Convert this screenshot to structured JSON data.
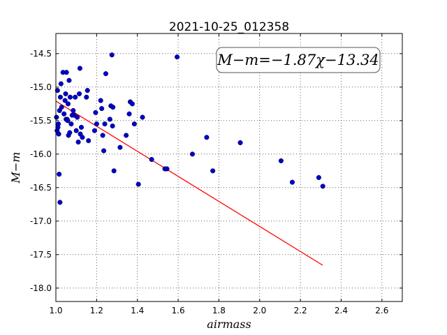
{
  "chart_data": {
    "type": "scatter",
    "title": "2021-10-25_012358",
    "xlabel": "airmass",
    "ylabel": "M−m",
    "xlim": [
      1.0,
      2.7
    ],
    "ylim": [
      -18.2,
      -14.2
    ],
    "xticks": [
      "1.0",
      "1.2",
      "1.4",
      "1.6",
      "1.8",
      "2.0",
      "2.2",
      "2.4",
      "2.6"
    ],
    "yticks": [
      "-14.5",
      "-15.0",
      "-15.5",
      "-16.0",
      "-16.5",
      "-17.0",
      "-17.5",
      "-18.0"
    ],
    "grid": true,
    "annotation": "M−m=−1.87χ−13.34",
    "point_color": "#0000cc",
    "fit_color": "#ff0000",
    "points": {
      "x": [
        1.003,
        1.006,
        1.008,
        1.01,
        1.012,
        1.014,
        1.016,
        1.018,
        1.02,
        1.022,
        1.025,
        1.028,
        1.035,
        1.04,
        1.045,
        1.048,
        1.05,
        1.052,
        1.055,
        1.058,
        1.06,
        1.062,
        1.065,
        1.068,
        1.07,
        1.075,
        1.08,
        1.085,
        1.09,
        1.095,
        1.1,
        1.105,
        1.11,
        1.115,
        1.118,
        1.12,
        1.125,
        1.13,
        1.15,
        1.155,
        1.16,
        1.19,
        1.195,
        1.2,
        1.22,
        1.225,
        1.23,
        1.235,
        1.24,
        1.245,
        1.265,
        1.27,
        1.275,
        1.278,
        1.28,
        1.285,
        1.315,
        1.345,
        1.36,
        1.365,
        1.375,
        1.385,
        1.405,
        1.425,
        1.47,
        1.535,
        1.545,
        1.595,
        1.67,
        1.74,
        1.77,
        1.905,
        2.105,
        2.16,
        2.29,
        2.31
      ],
      "y": [
        -15.45,
        -15.65,
        -15.05,
        -15.6,
        -15.55,
        -15.7,
        -16.3,
        -15.35,
        -16.72,
        -15.15,
        -14.95,
        -15.3,
        -14.78,
        -15.4,
        -15.2,
        -15.1,
        -15.48,
        -14.78,
        -15.48,
        -15.5,
        -15.25,
        -15.72,
        -14.9,
        -15.68,
        -15.15,
        -15.55,
        -15.42,
        -15.35,
        -15.42,
        -15.15,
        -15.65,
        -15.45,
        -15.82,
        -15.1,
        -14.72,
        -15.7,
        -15.6,
        -15.75,
        -15.15,
        -15.05,
        -15.8,
        -15.65,
        -15.38,
        -15.55,
        -15.2,
        -15.32,
        -15.72,
        -15.95,
        -15.55,
        -14.8,
        -15.48,
        -15.28,
        -14.52,
        -15.58,
        -15.3,
        -16.25,
        -15.9,
        -15.72,
        -15.4,
        -15.22,
        -15.25,
        -15.55,
        -16.45,
        -15.45,
        -16.08,
        -16.22,
        -16.22,
        -14.55,
        -16.0,
        -15.75,
        -16.25,
        -15.83,
        -16.1,
        -16.42,
        -16.35,
        -16.48
      ]
    },
    "fit": {
      "slope": -1.87,
      "intercept": -13.34,
      "x_range": [
        1.0,
        2.31
      ]
    }
  }
}
